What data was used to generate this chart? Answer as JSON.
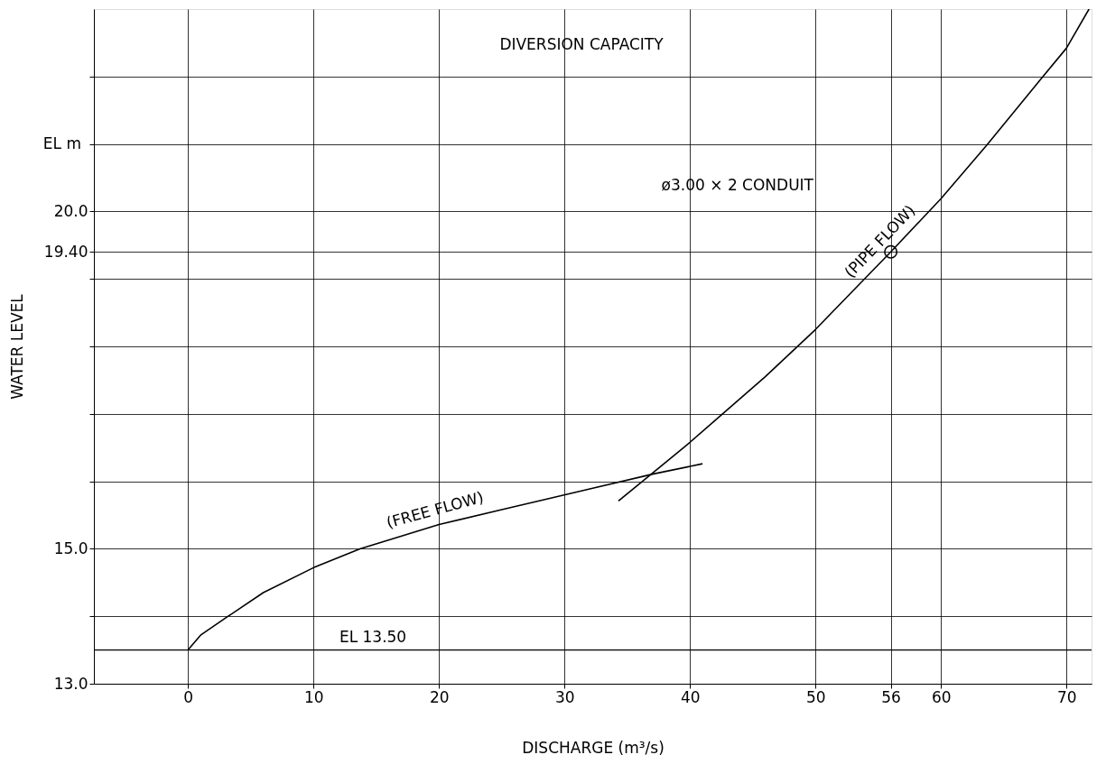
{
  "chart_data": {
    "type": "line",
    "title": "DIVERSION CAPACITY",
    "xlabel": "DISCHARGE (m³/s)",
    "ylabel": "WATER LEVEL",
    "annotations": [
      "EL m",
      "ø3.00 × 2 CONDUIT"
    ],
    "series": [
      {
        "name": "(FREE FLOW)",
        "color": "#000000",
        "x": [
          0,
          1,
          3.2,
          6,
          10,
          13.7,
          20,
          25,
          28.9,
          32.1,
          37.1,
          41
        ],
        "values": [
          13.5,
          13.72,
          14.0,
          14.35,
          14.72,
          15.0,
          15.36,
          15.58,
          15.75,
          15.89,
          16.11,
          16.26
        ]
      },
      {
        "name": "(PIPE FLOW)",
        "color": "#000000",
        "x": [
          34.3,
          39.7,
          42.1,
          46,
          50,
          56,
          60,
          63.6,
          68,
          70,
          71.8
        ],
        "values": [
          15.71,
          16.53,
          16.92,
          17.55,
          18.25,
          19.4,
          20.19,
          20.97,
          21.97,
          22.42,
          23.0
        ]
      },
      {
        "type": "scatter",
        "marker": "circle",
        "color": "#000000",
        "x": [
          56
        ],
        "values": [
          19.4
        ]
      }
    ],
    "ref_lines": [
      {
        "axis": "y",
        "value": 13.5,
        "label": "EL 13.50",
        "color": "#000000"
      }
    ],
    "xlim": [
      -7.5,
      72
    ],
    "ylim": [
      13,
      23
    ],
    "xticks": [
      0,
      10,
      20,
      30,
      40,
      50,
      56,
      60,
      70
    ],
    "yticks": [
      {
        "value": 13,
        "label": "13.0"
      },
      {
        "value": 14,
        "label": null
      },
      {
        "value": 15,
        "label": "15.0"
      },
      {
        "value": 16,
        "label": null
      },
      {
        "value": 17,
        "label": null
      },
      {
        "value": 18,
        "label": null
      },
      {
        "value": 19,
        "label": null
      },
      {
        "value": 19.4,
        "label": "19.40"
      },
      {
        "value": 20,
        "label": "20.0"
      },
      {
        "value": 21,
        "label": null
      },
      {
        "value": 22,
        "label": null
      }
    ],
    "grid": true,
    "marker": "none",
    "line_style": "solid"
  }
}
